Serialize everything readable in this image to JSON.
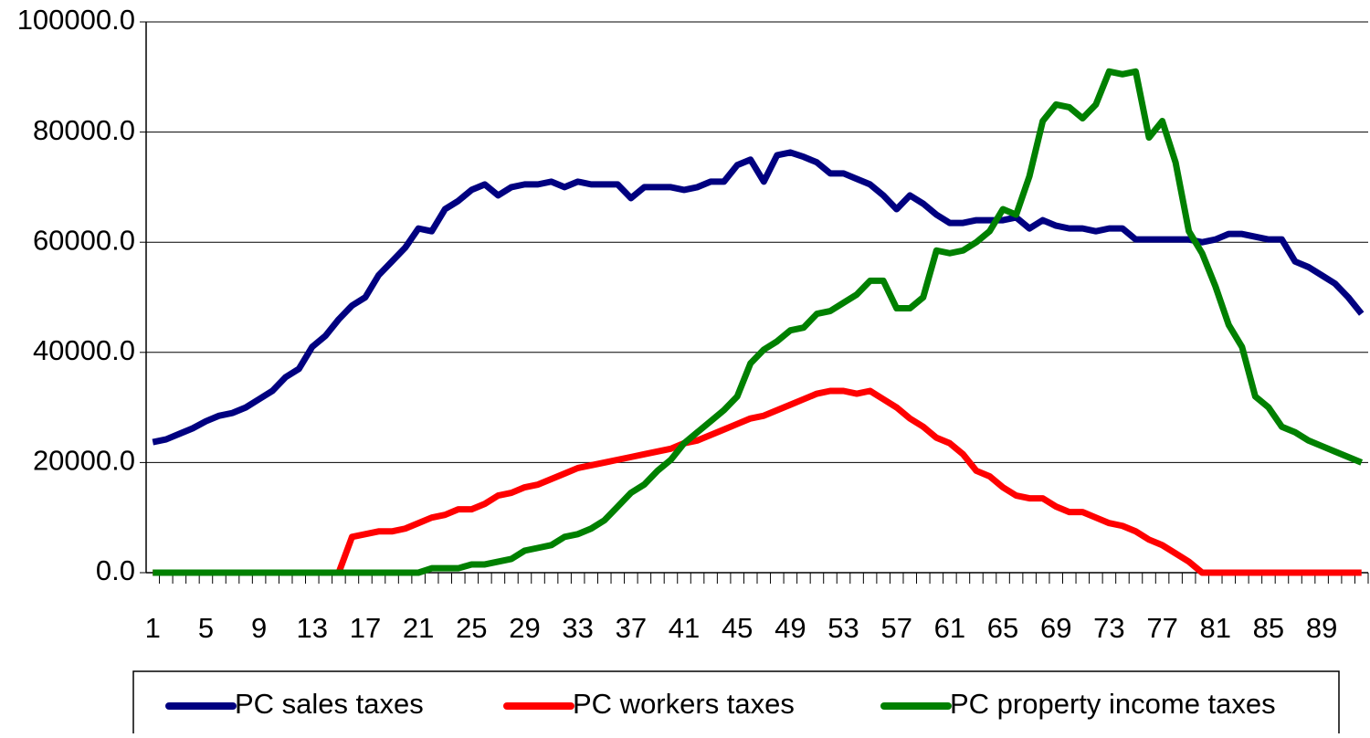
{
  "chart_data": {
    "type": "line",
    "categories": [
      "1",
      null,
      null,
      null,
      "5",
      null,
      null,
      null,
      "9",
      null,
      null,
      null,
      "13",
      null,
      null,
      null,
      "17",
      null,
      null,
      null,
      "21",
      null,
      null,
      null,
      "25",
      null,
      null,
      null,
      "29",
      null,
      null,
      null,
      "33",
      null,
      null,
      null,
      "37",
      null,
      null,
      null,
      "41",
      null,
      null,
      null,
      "45",
      null,
      null,
      null,
      "49",
      null,
      null,
      null,
      "53",
      null,
      null,
      null,
      "57",
      null,
      null,
      null,
      "61",
      null,
      null,
      null,
      "65",
      null,
      null,
      null,
      "69",
      null,
      null,
      null,
      "73",
      null,
      null,
      null,
      "77",
      null,
      null,
      null,
      "81",
      null,
      null,
      null,
      "85",
      null,
      null,
      null,
      "89",
      null,
      null,
      null
    ],
    "series": [
      {
        "name": "PC sales taxes",
        "color": "#000080",
        "values": [
          23700,
          24200,
          25200,
          26200,
          27500,
          28500,
          29000,
          30000,
          31500,
          33000,
          35500,
          37000,
          41000,
          43000,
          46000,
          48500,
          50000,
          54000,
          56500,
          59000,
          62500,
          62000,
          66000,
          67500,
          69500,
          70500,
          68500,
          70000,
          70500,
          70500,
          71000,
          70000,
          71000,
          70500,
          70500,
          70500,
          68000,
          70000,
          70000,
          70000,
          69500,
          70000,
          71000,
          71000,
          74000,
          75000,
          71000,
          75800,
          76300,
          75500,
          74500,
          72500,
          72500,
          71500,
          70500,
          68500,
          66000,
          68500,
          67000,
          65000,
          63500,
          63500,
          64000,
          64000,
          64000,
          64500,
          62500,
          64000,
          63000,
          62500,
          62500,
          62000,
          62500,
          62500,
          60500,
          60500,
          60500,
          60500,
          60500,
          60000,
          60500,
          61500,
          61500,
          61000,
          60500,
          60500,
          56500,
          55500,
          54000,
          52500,
          50000,
          47000
        ]
      },
      {
        "name": "PC workers taxes",
        "color": "#ff0000",
        "values": [
          0,
          0,
          0,
          0,
          0,
          0,
          0,
          0,
          0,
          0,
          0,
          0,
          0,
          0,
          0,
          6500,
          7000,
          7500,
          7500,
          8000,
          9000,
          10000,
          10500,
          11500,
          11500,
          12500,
          14000,
          14500,
          15500,
          16000,
          17000,
          18000,
          19000,
          19500,
          20000,
          20500,
          21000,
          21500,
          22000,
          22500,
          23500,
          24000,
          25000,
          26000,
          27000,
          28000,
          28500,
          29500,
          30500,
          31500,
          32500,
          33000,
          33000,
          32500,
          33000,
          31500,
          30000,
          28000,
          26500,
          24500,
          23500,
          21500,
          18500,
          17500,
          15500,
          14000,
          13500,
          13500,
          12000,
          11000,
          11000,
          10000,
          9000,
          8500,
          7500,
          6000,
          5000,
          3500,
          2000,
          0,
          0,
          0,
          0,
          0,
          0,
          0,
          0,
          0,
          0,
          0,
          0,
          0
        ]
      },
      {
        "name": "PC property income taxes",
        "color": "#008000",
        "values": [
          0,
          0,
          0,
          0,
          0,
          0,
          0,
          0,
          0,
          0,
          0,
          0,
          0,
          0,
          0,
          0,
          0,
          0,
          0,
          0,
          0,
          800,
          800,
          800,
          1500,
          1500,
          2000,
          2500,
          4000,
          4500,
          5000,
          6500,
          7000,
          8000,
          9500,
          12000,
          14500,
          16000,
          18500,
          20500,
          23500,
          25500,
          27500,
          29500,
          32000,
          38000,
          40500,
          42000,
          44000,
          44500,
          47000,
          47500,
          49000,
          50500,
          53000,
          53000,
          48000,
          48000,
          50000,
          58500,
          58000,
          58500,
          60000,
          62000,
          66000,
          65000,
          72000,
          82000,
          85000,
          84500,
          82500,
          85000,
          91000,
          90500,
          91000,
          79000,
          82000,
          74500,
          62000,
          58000,
          52000,
          45000,
          41000,
          32000,
          30000,
          26500,
          25500,
          24000,
          23000,
          22000,
          21000,
          20000
        ]
      }
    ],
    "ylim": [
      0,
      100000
    ],
    "yticks": [
      {
        "value": 0,
        "label": "0.0"
      },
      {
        "value": 20000,
        "label": "20000.0"
      },
      {
        "value": 40000,
        "label": "40000.0"
      },
      {
        "value": 60000,
        "label": "60000.0"
      },
      {
        "value": 80000,
        "label": "80000.0"
      },
      {
        "value": 100000,
        "label": "100000.0"
      }
    ],
    "grid": true,
    "legend": "bottom"
  }
}
